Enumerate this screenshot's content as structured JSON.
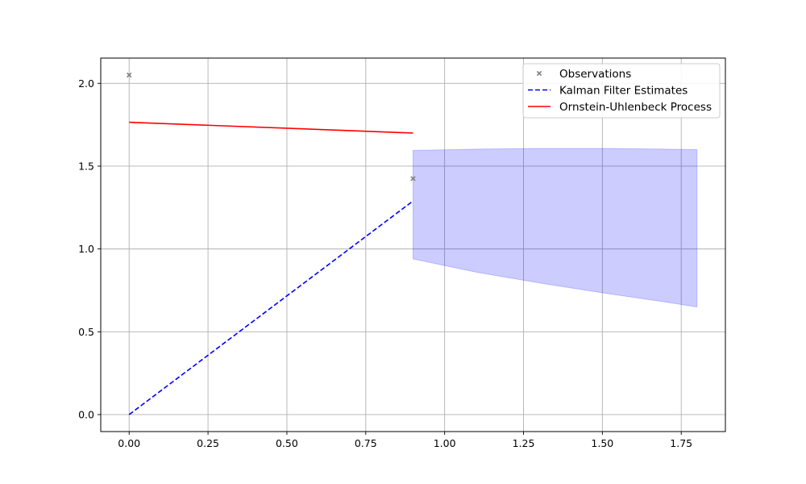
{
  "chart_data": {
    "type": "line",
    "title": "",
    "xlabel": "",
    "ylabel": "",
    "xlim": [
      -0.09,
      1.89
    ],
    "ylim": [
      -0.1025,
      2.1525
    ],
    "x_ticks": [
      0.0,
      0.25,
      0.5,
      0.75,
      1.0,
      1.25,
      1.5,
      1.75
    ],
    "x_tick_labels": [
      "0.00",
      "0.25",
      "0.50",
      "0.75",
      "1.00",
      "1.25",
      "1.50",
      "1.75"
    ],
    "y_ticks": [
      0.0,
      0.5,
      1.0,
      1.5,
      2.0
    ],
    "y_tick_labels": [
      "0.0",
      "0.5",
      "1.0",
      "1.5",
      "2.0"
    ],
    "grid": true,
    "legend_position": "top-right",
    "series": [
      {
        "name": "Observations",
        "kind": "scatter",
        "marker": "x",
        "color": "#808080",
        "x": [
          0.0,
          0.9
        ],
        "y": [
          2.05,
          1.425
        ]
      },
      {
        "name": "Kalman Filter Estimates",
        "kind": "line",
        "style": "dashed",
        "color": "#0000ff",
        "x": [
          0.0,
          0.9
        ],
        "y": [
          0.0,
          1.29
        ]
      },
      {
        "name": "Ornstein-Uhlenbeck Process",
        "kind": "line",
        "style": "solid",
        "color": "#ff0000",
        "x": [
          0.0,
          0.9
        ],
        "y": [
          1.765,
          1.7
        ]
      }
    ],
    "band": {
      "color": "#0000ff",
      "opacity": 0.2,
      "x": [
        0.9,
        1.1,
        1.3,
        1.5,
        1.7,
        1.8
      ],
      "lower": [
        0.94,
        0.86,
        0.795,
        0.735,
        0.68,
        0.65
      ],
      "upper": [
        1.595,
        1.603,
        1.607,
        1.607,
        1.603,
        1.6
      ]
    }
  }
}
